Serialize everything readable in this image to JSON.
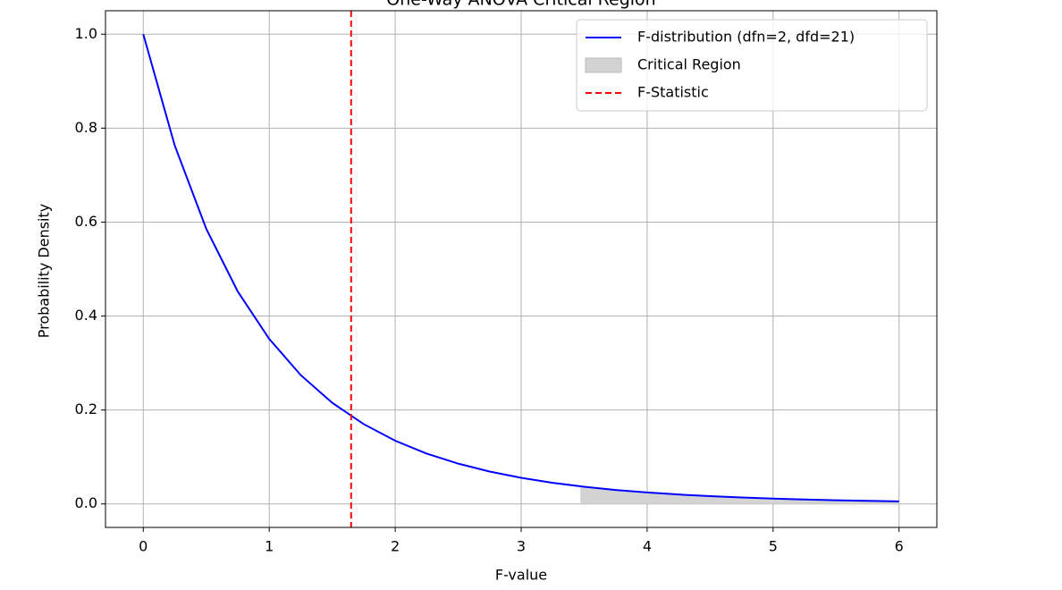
{
  "chart_data": {
    "type": "line",
    "title": "One-Way ANOVA Critical Region",
    "x_label": "F-value",
    "y_label": "Probability Density",
    "xlim": [
      -0.3,
      6.3
    ],
    "ylim": [
      -0.05,
      1.05
    ],
    "xticks": [
      0,
      1,
      2,
      3,
      4,
      5,
      6
    ],
    "yticks": [
      {
        "value": 0,
        "label": "0.0"
      },
      {
        "value": 0.2,
        "label": "0.2"
      },
      {
        "value": 0.4,
        "label": "0.4"
      },
      {
        "value": 0.6,
        "label": "0.6"
      },
      {
        "value": 0.8,
        "label": "0.8"
      },
      {
        "value": 1,
        "label": "1.0"
      }
    ],
    "grid": true,
    "legend": "upper right",
    "series": [
      {
        "name": "F-distribution (dfn=2, dfd=21)",
        "kind": "line",
        "color": "#0000ff",
        "x": [
          0,
          0.25,
          0.5,
          0.75,
          1,
          1.25,
          1.5,
          1.75,
          2,
          2.25,
          2.5,
          2.75,
          3,
          3.25,
          3.5,
          3.75,
          4,
          4.25,
          4.5,
          4.75,
          5,
          5.25,
          5.5,
          5.75,
          6
        ],
        "values": [
          1,
          0.7629,
          0.5857,
          0.4523,
          0.3513,
          0.2743,
          0.2153,
          0.1699,
          0.1346,
          0.1072,
          0.0858,
          0.0689,
          0.0556,
          0.045,
          0.0366,
          0.0298,
          0.0244,
          0.0201,
          0.0165,
          0.0137,
          0.0113,
          0.00944,
          0.00787,
          0.00659,
          0.00552
        ]
      },
      {
        "name": "Critical Region",
        "kind": "fill",
        "color": "#d3d3d3",
        "x": [
          3.47,
          3.5,
          3.75,
          4,
          4.25,
          4.5,
          4.75,
          5,
          5.25,
          5.5,
          5.75,
          6
        ],
        "values": [
          0.0375,
          0.0366,
          0.0298,
          0.0244,
          0.0201,
          0.0165,
          0.0137,
          0.0113,
          0.00944,
          0.00787,
          0.00659,
          0.00552
        ]
      }
    ],
    "vlines": [
      {
        "name": "F-Statistic",
        "x": 1.65,
        "color": "#ff0000"
      }
    ]
  }
}
